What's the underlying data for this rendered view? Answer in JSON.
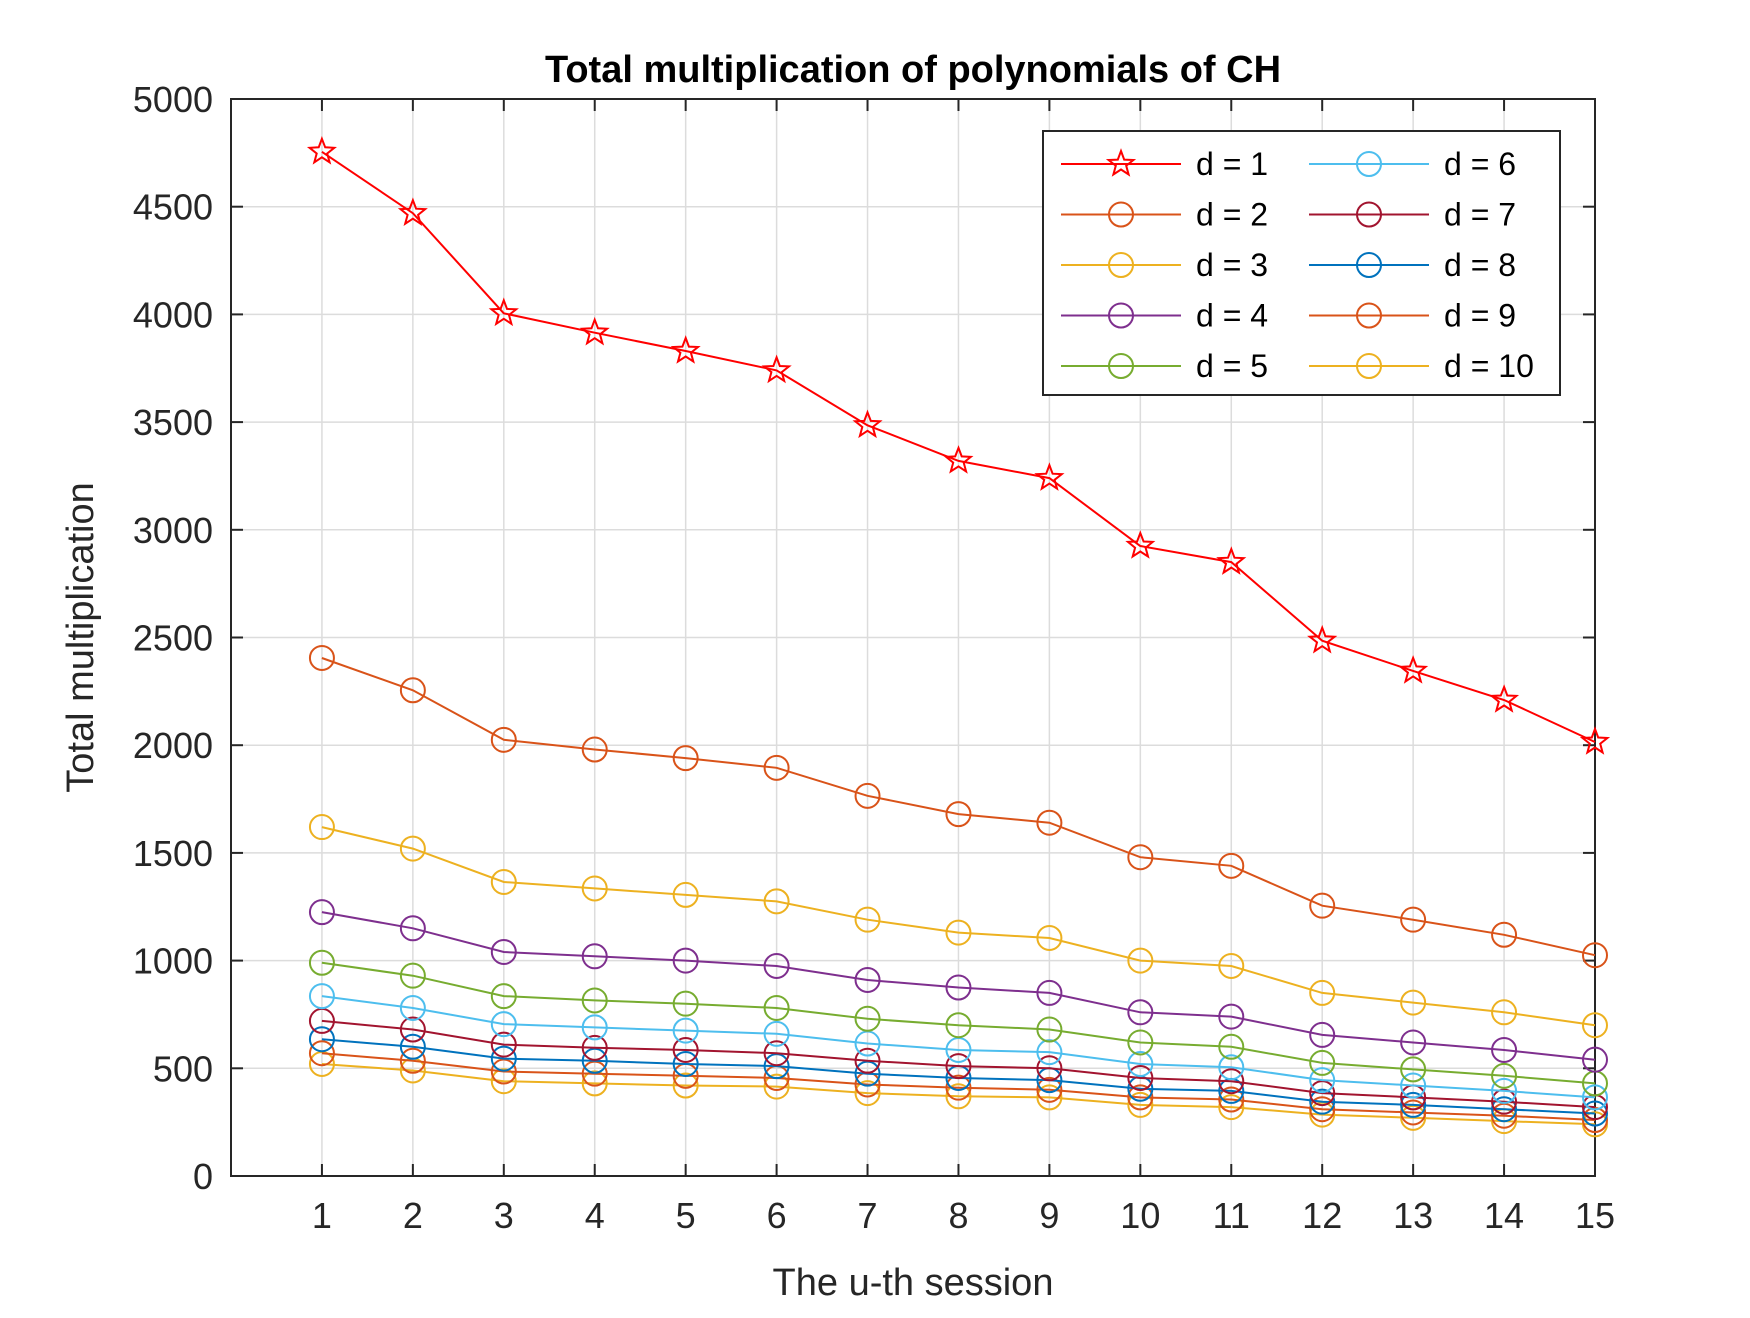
{
  "chart_data": {
    "type": "line",
    "title": "Total multiplication of polynomials of CH",
    "xlabel": "The u-th session",
    "ylabel": "Total multiplication",
    "x": [
      1,
      2,
      3,
      4,
      5,
      6,
      7,
      8,
      9,
      10,
      11,
      12,
      13,
      14,
      15
    ],
    "xlim": [
      0,
      15
    ],
    "ylim": [
      0,
      5000
    ],
    "yticks": [
      0,
      500,
      1000,
      1500,
      2000,
      2500,
      3000,
      3500,
      4000,
      4500,
      5000
    ],
    "xticks": [
      1,
      2,
      3,
      4,
      5,
      6,
      7,
      8,
      9,
      10,
      11,
      12,
      13,
      14,
      15
    ],
    "grid": true,
    "legend_position": "top-right",
    "series": [
      {
        "name": "d = 1",
        "color": "#ff0000",
        "marker": "star",
        "values": [
          4755,
          4470,
          4005,
          3915,
          3830,
          3740,
          3485,
          3320,
          3240,
          2925,
          2850,
          2485,
          2345,
          2210,
          2015
        ]
      },
      {
        "name": "d = 2",
        "color": "#d95319",
        "marker": "circle",
        "values": [
          2405,
          2255,
          2025,
          1980,
          1940,
          1895,
          1765,
          1680,
          1640,
          1480,
          1440,
          1255,
          1190,
          1120,
          1025
        ]
      },
      {
        "name": "d = 3",
        "color": "#edb120",
        "marker": "circle",
        "values": [
          1620,
          1520,
          1365,
          1335,
          1305,
          1275,
          1190,
          1130,
          1105,
          1000,
          975,
          850,
          805,
          760,
          700
        ]
      },
      {
        "name": "d = 4",
        "color": "#7e2f8e",
        "marker": "circle",
        "values": [
          1225,
          1150,
          1040,
          1020,
          1000,
          975,
          910,
          875,
          850,
          760,
          740,
          655,
          620,
          585,
          540
        ]
      },
      {
        "name": "d = 5",
        "color": "#77ac30",
        "marker": "circle",
        "values": [
          990,
          930,
          835,
          815,
          800,
          780,
          730,
          700,
          680,
          620,
          600,
          525,
          495,
          465,
          430
        ]
      },
      {
        "name": "d = 6",
        "color": "#4dbeee",
        "marker": "circle",
        "values": [
          835,
          780,
          705,
          690,
          675,
          660,
          615,
          585,
          575,
          520,
          505,
          445,
          420,
          395,
          365
        ]
      },
      {
        "name": "d = 7",
        "color": "#a2142f",
        "marker": "circle",
        "values": [
          720,
          680,
          610,
          595,
          585,
          570,
          535,
          510,
          500,
          455,
          440,
          385,
          365,
          345,
          320
        ]
      },
      {
        "name": "d = 8",
        "color": "#0072bd",
        "marker": "circle",
        "values": [
          635,
          600,
          545,
          535,
          520,
          510,
          475,
          455,
          445,
          405,
          395,
          345,
          330,
          310,
          290
        ]
      },
      {
        "name": "d = 9",
        "color": "#d95319",
        "marker": "circle",
        "values": [
          570,
          535,
          485,
          475,
          465,
          455,
          425,
          410,
          400,
          365,
          355,
          310,
          295,
          280,
          260
        ]
      },
      {
        "name": "d = 10",
        "color": "#edb120",
        "marker": "circle",
        "values": [
          520,
          490,
          440,
          430,
          420,
          415,
          385,
          370,
          365,
          330,
          320,
          285,
          270,
          255,
          240
        ]
      }
    ]
  }
}
